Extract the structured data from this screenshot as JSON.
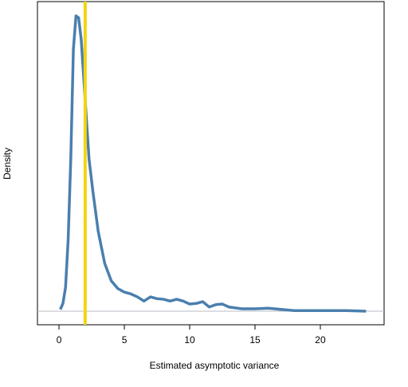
{
  "chart_data": {
    "type": "line",
    "xlabel": "Estimated asymptotic variance",
    "ylabel": "Density",
    "x": [
      0.1,
      0.3,
      0.5,
      0.7,
      0.9,
      1.1,
      1.3,
      1.5,
      1.7,
      1.9,
      2.1,
      2.3,
      2.6,
      3.0,
      3.5,
      4.0,
      4.5,
      5.0,
      5.5,
      6.0,
      6.5,
      7.0,
      7.5,
      8.0,
      8.5,
      9.0,
      9.5,
      10,
      10.5,
      11,
      11.5,
      12,
      12.5,
      13,
      14,
      15,
      16,
      17,
      18,
      20,
      22,
      23.5
    ],
    "series": [
      {
        "color": "#4a7fae",
        "values": [
          0.003,
          0.013,
          0.04,
          0.12,
          0.255,
          0.44,
          0.496,
          0.493,
          0.456,
          0.389,
          0.322,
          0.255,
          0.2,
          0.134,
          0.08,
          0.051,
          0.038,
          0.032,
          0.029,
          0.024,
          0.017,
          0.024,
          0.021,
          0.02,
          0.017,
          0.02,
          0.017,
          0.012,
          0.013,
          0.016,
          0.007,
          0.011,
          0.012,
          0.007,
          0.004,
          0.004,
          0.005,
          0.003,
          0.001,
          0.001,
          0.001,
          0
        ]
      }
    ],
    "xlim": [
      -1.65,
      24.88
    ],
    "xticks": [
      0,
      5,
      10,
      15,
      20
    ],
    "ylim": [
      -0.0228,
      0.52
    ],
    "hline": 0,
    "hline_color": "#b8bcc4",
    "vline": 2.0,
    "vline_color": "#f5d40f"
  }
}
